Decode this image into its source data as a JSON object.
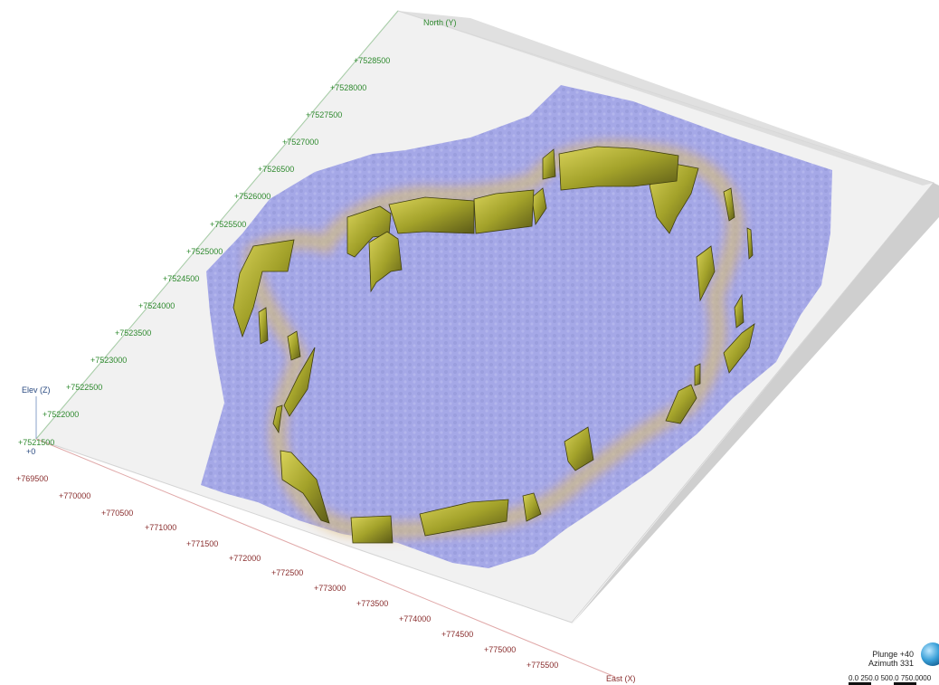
{
  "view": {
    "axis_labels": {
      "north": "North (Y)",
      "east": "East (X)",
      "elev": "Elev (Z)",
      "elev_value": "+0"
    },
    "north_ticks": [
      "+7521500",
      "+7522000",
      "+7522500",
      "+7523000",
      "+7523500",
      "+7524000",
      "+7524500",
      "+7525000",
      "+7525500",
      "+7526000",
      "+7526500",
      "+7527000",
      "+7527500",
      "+7528000",
      "+7528500"
    ],
    "east_ticks": [
      "+769500",
      "+770000",
      "+770500",
      "+771000",
      "+771500",
      "+772000",
      "+772500",
      "+773000",
      "+773500",
      "+774000",
      "+774500",
      "+775000",
      "+775500"
    ],
    "orientation": {
      "plunge": "Plunge +40",
      "azimuth": "Azimuth 331"
    },
    "scale_bar": "0.0  250.0  500.0  750.0",
    "scale_bar_tail": "000"
  },
  "colors": {
    "terrain": "#f0f0f0",
    "overlay": "#9ea2e6",
    "shell": "#a3a22a",
    "glow": "#f2b06a",
    "north_label": "#2f8a2f",
    "east_label": "#8a2f2f"
  }
}
